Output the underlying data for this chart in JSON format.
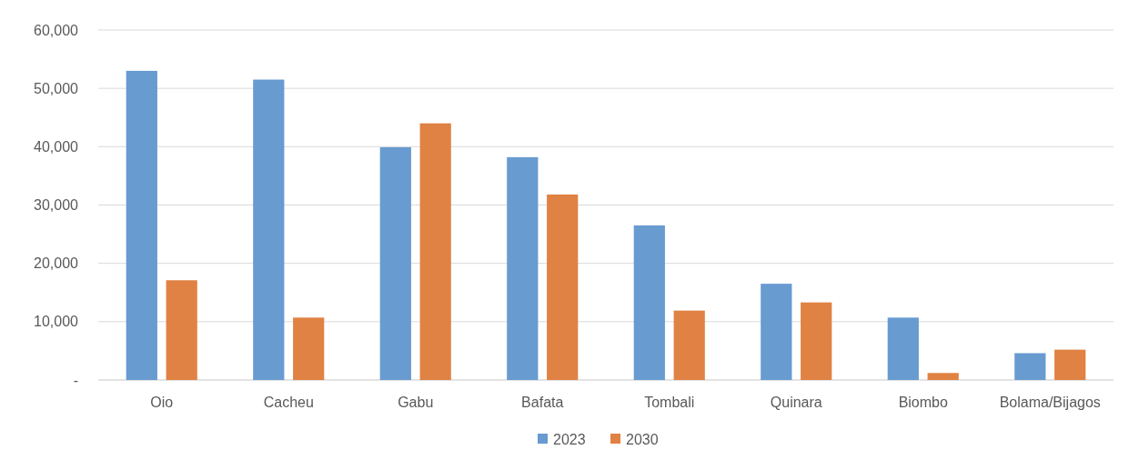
{
  "chart_data": {
    "type": "bar",
    "categories": [
      "Oio",
      "Cacheu",
      "Gabu",
      "Bafata",
      "Tombali",
      "Quinara",
      "Biombo",
      "Bolama/Bijagos"
    ],
    "series": [
      {
        "name": "2023",
        "color": "#689bd0",
        "values": [
          53000,
          51500,
          39900,
          38200,
          26500,
          16500,
          10700,
          4600
        ]
      },
      {
        "name": "2030",
        "color": "#e08243",
        "values": [
          17100,
          10700,
          44000,
          31800,
          11900,
          13300,
          1200,
          5200
        ]
      }
    ],
    "ylim": [
      0,
      60000
    ],
    "yticks": [
      {
        "value": 0,
        "label": "-"
      },
      {
        "value": 10000,
        "label": "10,000"
      },
      {
        "value": 20000,
        "label": "20,000"
      },
      {
        "value": 30000,
        "label": "30,000"
      },
      {
        "value": 40000,
        "label": "40,000"
      },
      {
        "value": 50000,
        "label": "50,000"
      },
      {
        "value": 60000,
        "label": "60,000"
      }
    ],
    "grid": "y",
    "legend": "bottom"
  }
}
